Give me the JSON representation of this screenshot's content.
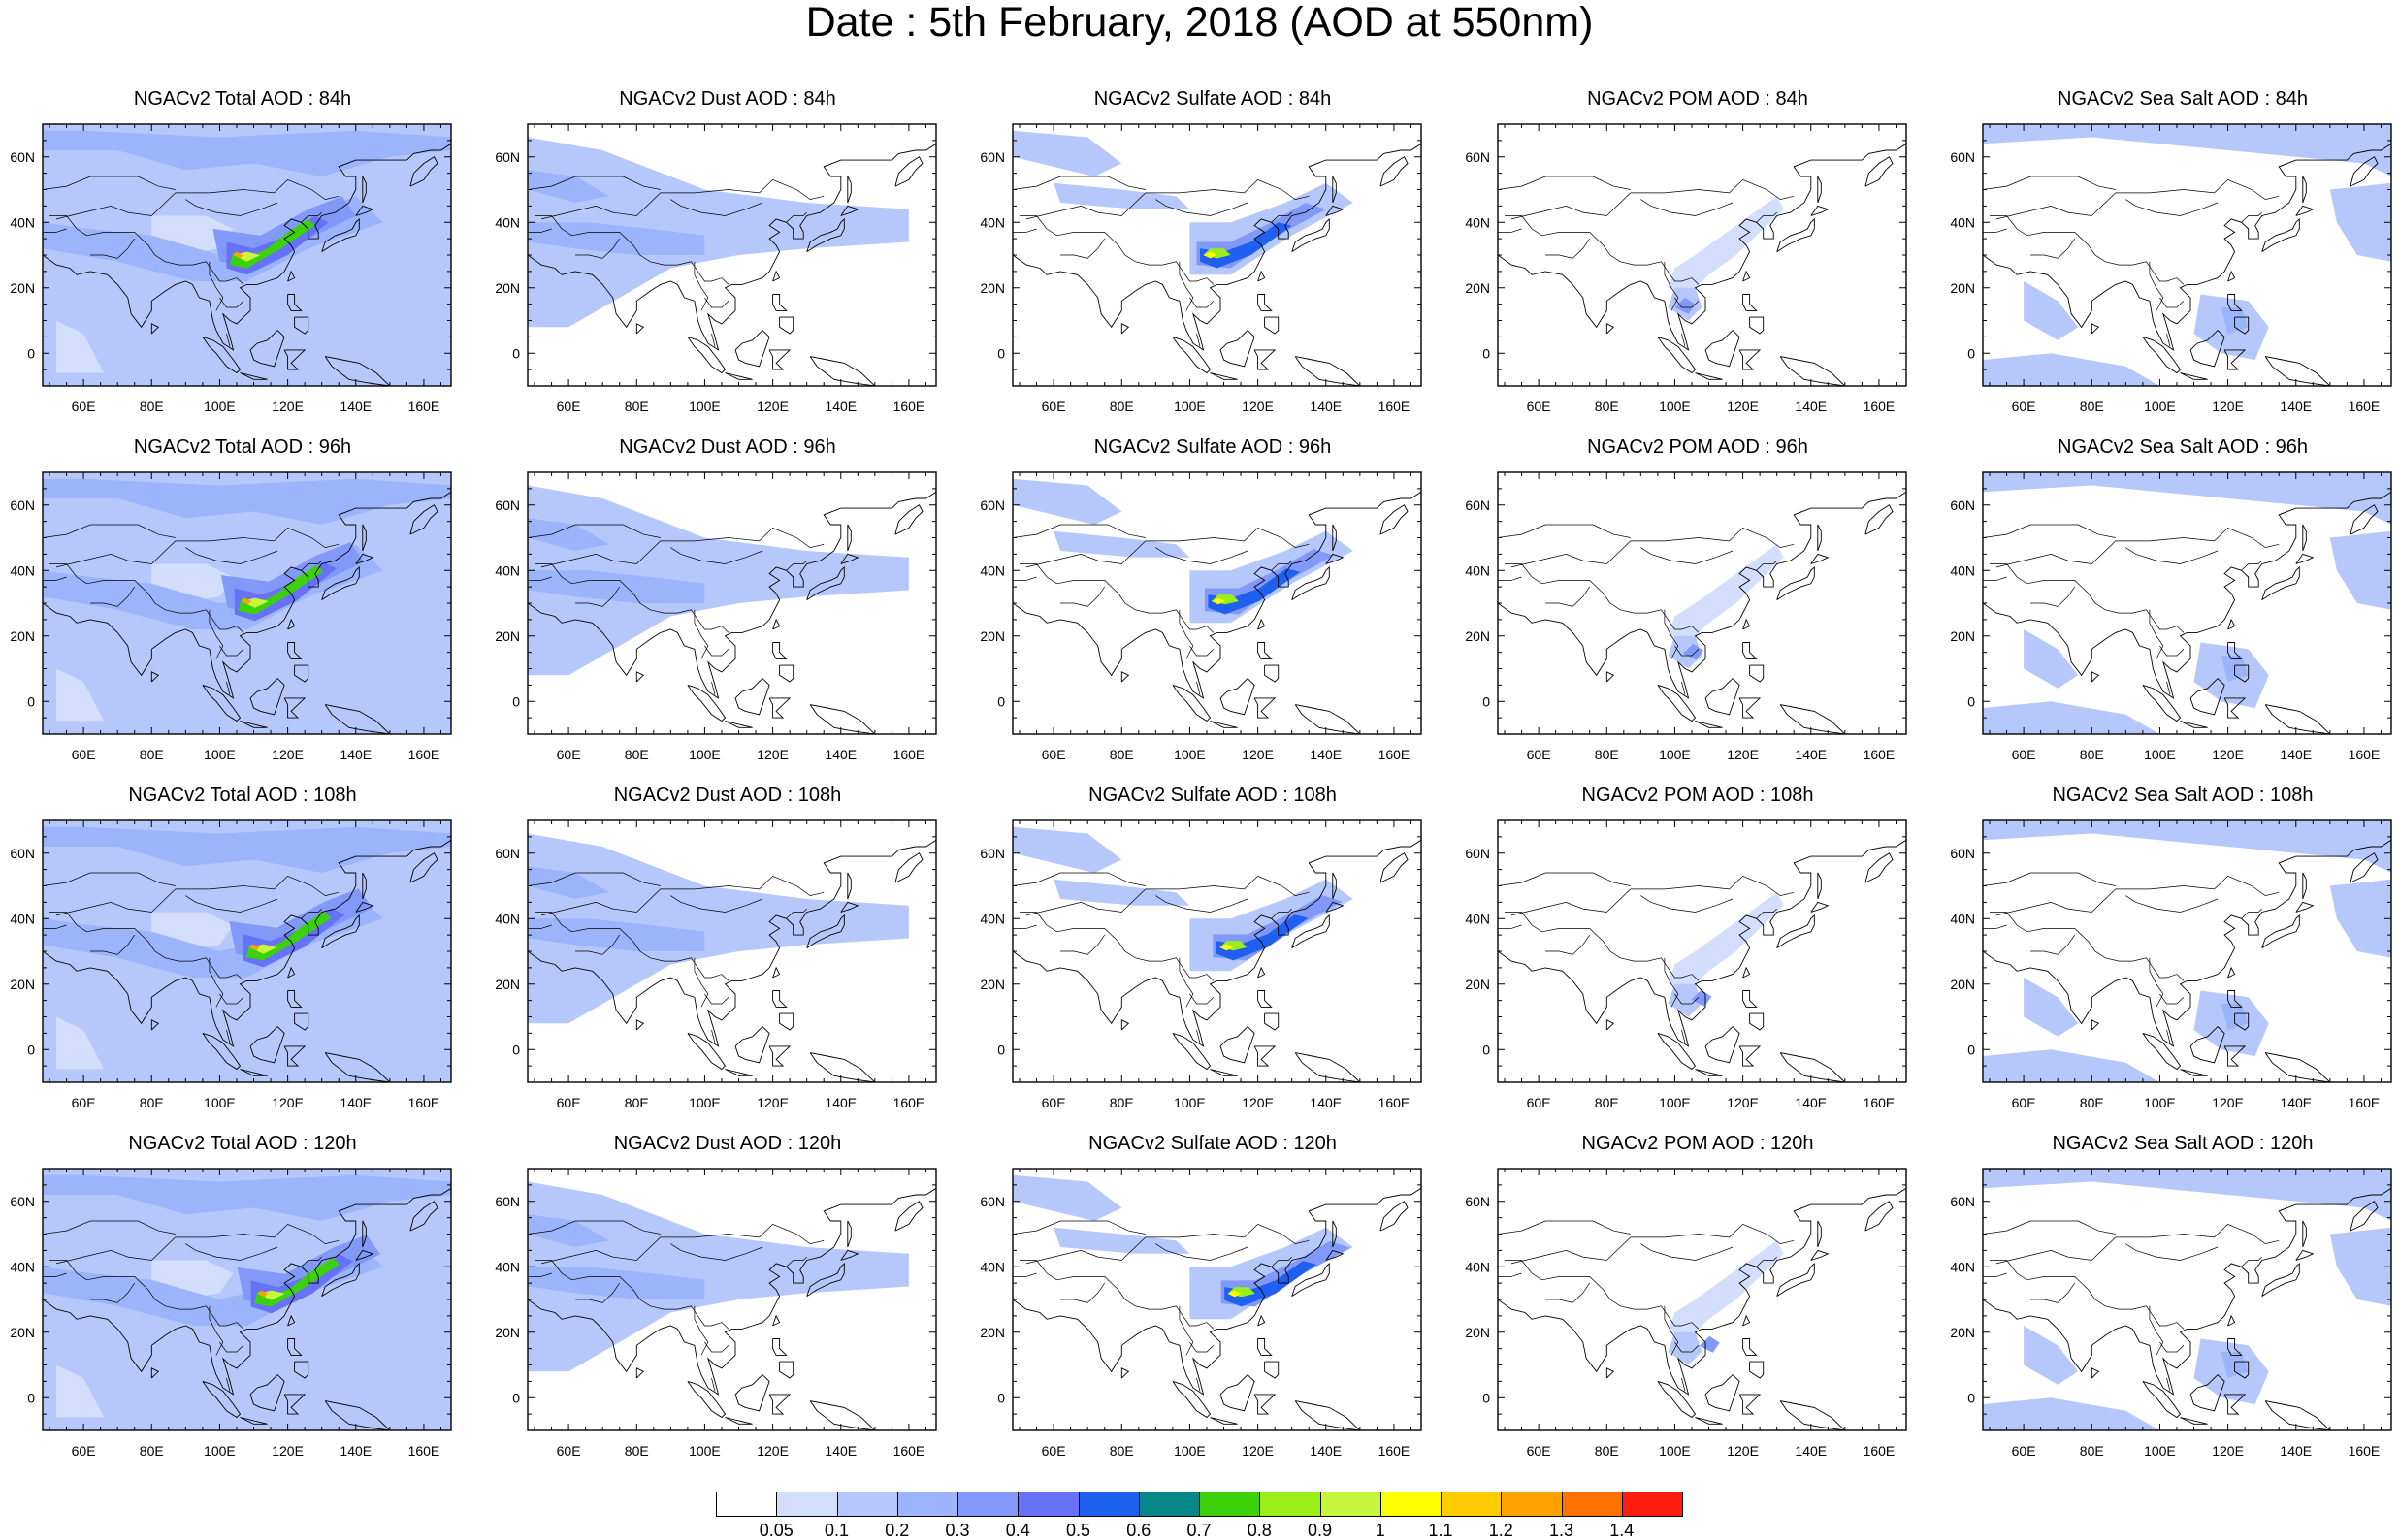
{
  "title": "Date : 5th February, 2018 (AOD at 550nm)",
  "lon_labels": [
    "60E",
    "80E",
    "100E",
    "120E",
    "140E",
    "160E"
  ],
  "lat_labels": [
    "60N",
    "40N",
    "20N",
    "0"
  ],
  "panels": [
    {
      "title": "NGACv2 Total AOD : 84h",
      "species": "total",
      "hour": 84
    },
    {
      "title": "NGACv2 Dust AOD : 84h",
      "species": "dust",
      "hour": 84
    },
    {
      "title": "NGACv2 Sulfate AOD : 84h",
      "species": "sulfate",
      "hour": 84
    },
    {
      "title": "NGACv2 POM AOD : 84h",
      "species": "pom",
      "hour": 84
    },
    {
      "title": "NGACv2 Sea Salt AOD : 84h",
      "species": "seasalt",
      "hour": 84
    },
    {
      "title": "NGACv2 Total AOD : 96h",
      "species": "total",
      "hour": 96
    },
    {
      "title": "NGACv2 Dust AOD : 96h",
      "species": "dust",
      "hour": 96
    },
    {
      "title": "NGACv2 Sulfate AOD : 96h",
      "species": "sulfate",
      "hour": 96
    },
    {
      "title": "NGACv2 POM AOD : 96h",
      "species": "pom",
      "hour": 96
    },
    {
      "title": "NGACv2 Sea Salt AOD : 96h",
      "species": "seasalt",
      "hour": 96
    },
    {
      "title": "NGACv2 Total AOD : 108h",
      "species": "total",
      "hour": 108
    },
    {
      "title": "NGACv2 Dust AOD : 108h",
      "species": "dust",
      "hour": 108
    },
    {
      "title": "NGACv2 Sulfate AOD : 108h",
      "species": "sulfate",
      "hour": 108
    },
    {
      "title": "NGACv2 POM AOD : 108h",
      "species": "pom",
      "hour": 108
    },
    {
      "title": "NGACv2 Sea Salt AOD : 108h",
      "species": "seasalt",
      "hour": 108
    },
    {
      "title": "NGACv2 Total AOD : 120h",
      "species": "total",
      "hour": 120
    },
    {
      "title": "NGACv2 Dust AOD : 120h",
      "species": "dust",
      "hour": 120
    },
    {
      "title": "NGACv2 Sulfate AOD : 120h",
      "species": "sulfate",
      "hour": 120
    },
    {
      "title": "NGACv2 POM AOD : 120h",
      "species": "pom",
      "hour": 120
    },
    {
      "title": "NGACv2 Sea Salt  AOD : 120h",
      "species": "seasalt",
      "hour": 120
    }
  ],
  "colorbar": {
    "labels": [
      "0.05",
      "0.1",
      "0.2",
      "0.3",
      "0.4",
      "0.5",
      "0.6",
      "0.7",
      "0.8",
      "0.9",
      "1",
      "1.1",
      "1.2",
      "1.3",
      "1.4"
    ],
    "colors": [
      "#ffffff",
      "#d3ddfc",
      "#b6c8fb",
      "#9cb4fb",
      "#8299fa",
      "#6672f7",
      "#1f60f0",
      "#07878a",
      "#3dd10b",
      "#98f018",
      "#c9f53e",
      "#ffff00",
      "#ffcc00",
      "#ffa200",
      "#ff7200",
      "#ff1e0e"
    ]
  }
}
